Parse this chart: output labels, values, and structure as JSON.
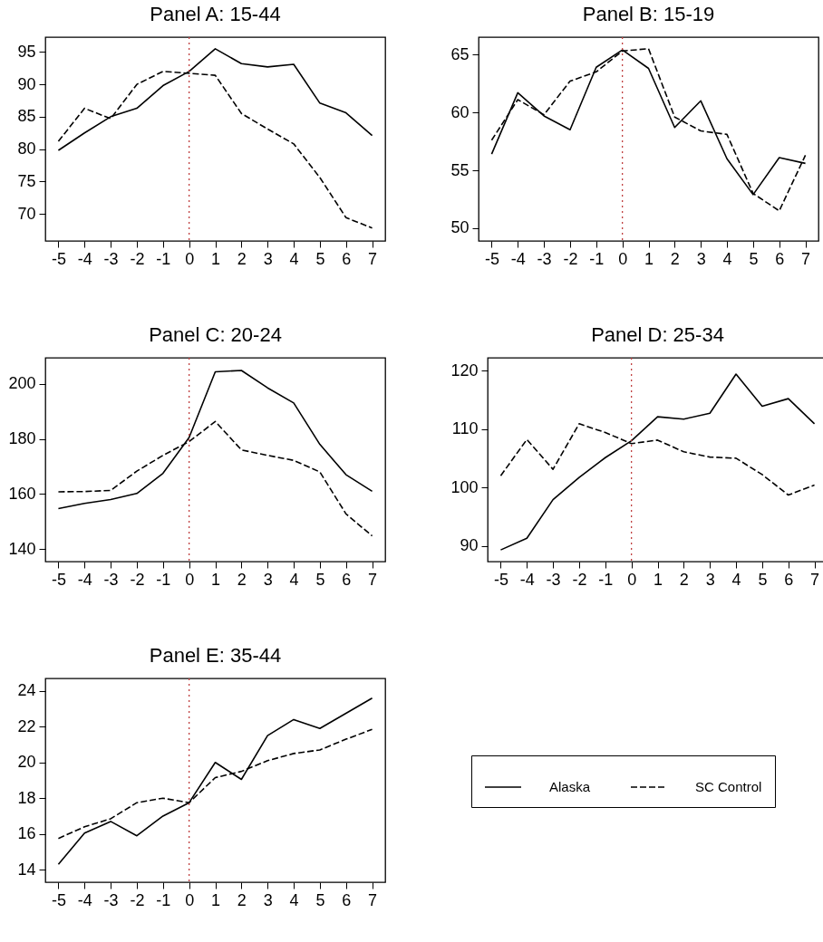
{
  "chart_data": [
    {
      "type": "line",
      "title": "Panel A: 15-44",
      "x": [
        -5,
        -4,
        -3,
        -2,
        -1,
        0,
        1,
        2,
        3,
        4,
        5,
        6,
        7
      ],
      "xlim": [
        -5.5,
        7.5
      ],
      "xticks": [
        -5,
        -4,
        -3,
        -2,
        -1,
        0,
        1,
        2,
        3,
        4,
        5,
        6,
        7
      ],
      "ylim": [
        65.8,
        97.3
      ],
      "yticks": [
        70,
        75,
        80,
        85,
        90,
        95
      ],
      "grid": false,
      "ref_lines": [
        {
          "axis": "x",
          "value": 0,
          "color": "#c04040",
          "line_style": "dotted"
        }
      ],
      "series": [
        {
          "color": "#000000",
          "line_style": "solid",
          "values": [
            79.8,
            82.5,
            85,
            86.3,
            89.8,
            92,
            95.5,
            93.2,
            92.7,
            93.1,
            87.1,
            85.6,
            82.1
          ]
        },
        {
          "color": "#000000",
          "line_style": "dashed",
          "values": [
            81.2,
            86.3,
            84.7,
            90,
            92,
            91.7,
            91.4,
            85.5,
            83.1,
            80.8,
            75.6,
            69.4,
            67.8
          ]
        }
      ]
    },
    {
      "type": "line",
      "title": "Panel B: 15-19",
      "x": [
        -5,
        -4,
        -3,
        -2,
        -1,
        0,
        1,
        2,
        3,
        4,
        5,
        6,
        7
      ],
      "xlim": [
        -5.5,
        7.5
      ],
      "xticks": [
        -5,
        -4,
        -3,
        -2,
        -1,
        0,
        1,
        2,
        3,
        4,
        5,
        6,
        7
      ],
      "ylim": [
        48.9,
        66.5
      ],
      "yticks": [
        50,
        55,
        60,
        65
      ],
      "grid": false,
      "ref_lines": [
        {
          "axis": "x",
          "value": 0,
          "color": "#c04040",
          "line_style": "dotted"
        }
      ],
      "series": [
        {
          "color": "#000000",
          "line_style": "solid",
          "values": [
            56.4,
            61.7,
            59.7,
            58.5,
            63.9,
            65.4,
            63.8,
            58.7,
            61,
            56,
            52.9,
            56.1,
            55.6
          ]
        },
        {
          "color": "#000000",
          "line_style": "dashed",
          "values": [
            57.6,
            61.1,
            59.8,
            62.7,
            63.5,
            65.3,
            65.5,
            59.6,
            58.4,
            58.1,
            53,
            51.5,
            56.3
          ]
        }
      ]
    },
    {
      "type": "line",
      "title": "Panel C: 20-24",
      "x": [
        -5,
        -4,
        -3,
        -2,
        -1,
        0,
        1,
        2,
        3,
        4,
        5,
        6,
        7
      ],
      "xlim": [
        -5.5,
        7.5
      ],
      "xticks": [
        -5,
        -4,
        -3,
        -2,
        -1,
        0,
        1,
        2,
        3,
        4,
        5,
        6,
        7
      ],
      "ylim": [
        135.5,
        209.4
      ],
      "yticks": [
        140,
        160,
        180,
        200
      ],
      "grid": false,
      "ref_lines": [
        {
          "axis": "x",
          "value": 0,
          "color": "#c04040",
          "line_style": "dotted"
        }
      ],
      "series": [
        {
          "color": "#000000",
          "line_style": "solid",
          "values": [
            154.7,
            156.6,
            158,
            160.2,
            167.5,
            180.5,
            204.3,
            204.8,
            198.5,
            193,
            178,
            167,
            161
          ]
        },
        {
          "color": "#000000",
          "line_style": "dashed",
          "values": [
            160.8,
            160.9,
            161.3,
            168.3,
            174,
            179,
            186.3,
            176,
            174,
            172.2,
            168,
            152.8,
            144.8
          ]
        }
      ]
    },
    {
      "type": "line",
      "title": "Panel D: 25-34",
      "x": [
        -5,
        -4,
        -3,
        -2,
        -1,
        0,
        1,
        2,
        3,
        4,
        5,
        6,
        7
      ],
      "xlim": [
        -5.5,
        7.5
      ],
      "xticks": [
        -5,
        -4,
        -3,
        -2,
        -1,
        0,
        1,
        2,
        3,
        4,
        5,
        6,
        7
      ],
      "ylim": [
        87.3,
        122.2
      ],
      "yticks": [
        90,
        100,
        110,
        120
      ],
      "grid": false,
      "ref_lines": [
        {
          "axis": "x",
          "value": 0,
          "color": "#c04040",
          "line_style": "dotted"
        }
      ],
      "series": [
        {
          "color": "#000000",
          "line_style": "solid",
          "values": [
            89.3,
            91.3,
            97.9,
            101.7,
            105.1,
            108,
            112.1,
            111.7,
            112.7,
            119.4,
            113.9,
            115.2,
            110.9
          ]
        },
        {
          "color": "#000000",
          "line_style": "dashed",
          "values": [
            102,
            108.2,
            103.1,
            110.9,
            109.4,
            107.5,
            108.1,
            106.1,
            105.2,
            105,
            102.2,
            98.7,
            100.4
          ]
        }
      ]
    },
    {
      "type": "line",
      "title": "Panel E: 35-44",
      "x": [
        -5,
        -4,
        -3,
        -2,
        -1,
        0,
        1,
        2,
        3,
        4,
        5,
        6,
        7
      ],
      "xlim": [
        -5.5,
        7.5
      ],
      "xticks": [
        -5,
        -4,
        -3,
        -2,
        -1,
        0,
        1,
        2,
        3,
        4,
        5,
        6,
        7
      ],
      "ylim": [
        13.3,
        24.7
      ],
      "yticks": [
        14,
        16,
        18,
        20,
        22,
        24
      ],
      "grid": false,
      "legend": "right",
      "ref_lines": [
        {
          "axis": "x",
          "value": 0,
          "color": "#c04040",
          "line_style": "dotted"
        }
      ],
      "series": [
        {
          "name": "Alaska",
          "color": "#000000",
          "line_style": "solid",
          "values": [
            14.3,
            16.05,
            16.7,
            15.9,
            17,
            17.75,
            20,
            19.05,
            21.5,
            22.4,
            21.9,
            22.75,
            23.6
          ]
        },
        {
          "name": "SC Control",
          "color": "#000000",
          "line_style": "dashed",
          "values": [
            15.75,
            16.4,
            16.85,
            17.75,
            18,
            17.75,
            19.15,
            19.5,
            20.1,
            20.5,
            20.7,
            21.3,
            21.85
          ]
        }
      ]
    }
  ]
}
